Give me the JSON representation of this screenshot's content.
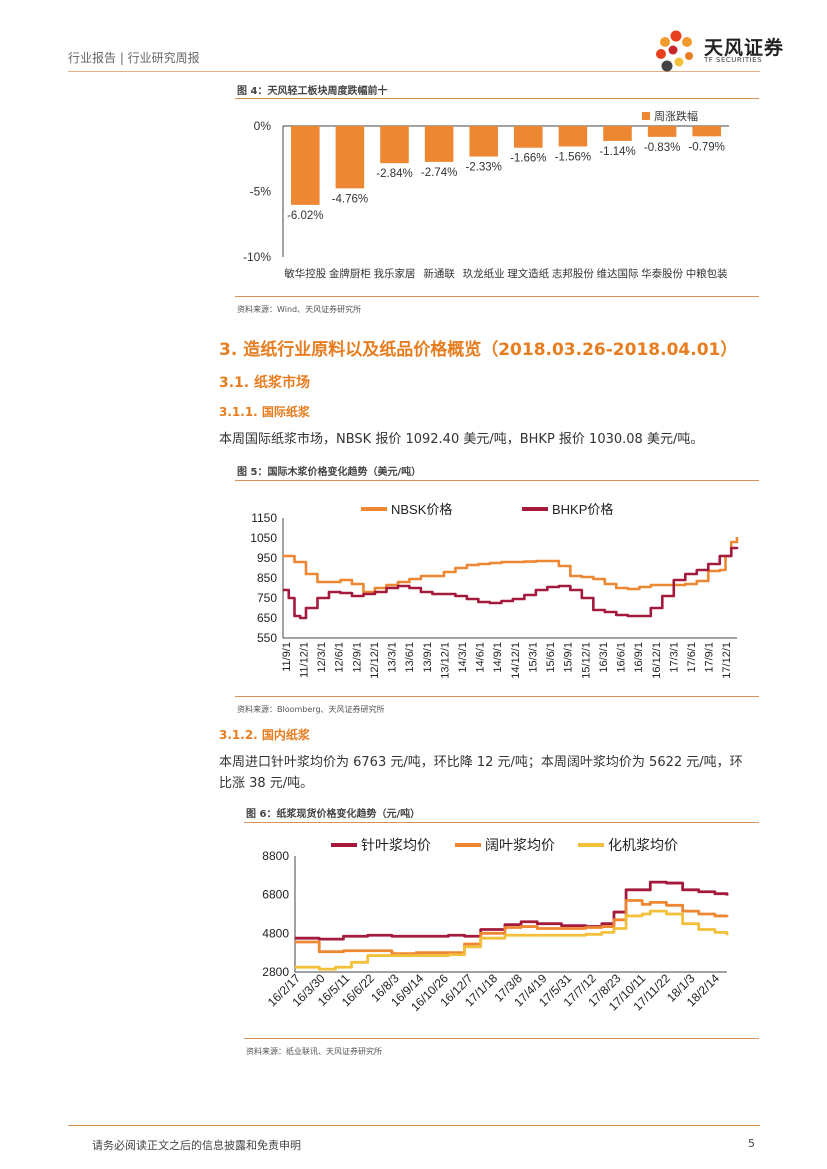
{
  "header": {
    "breadcrumb": "行业报告 | 行业研究周报",
    "logo_name": "天风证券",
    "logo_sub": "TF SECURITIES"
  },
  "colors": {
    "accent": "#e87d20",
    "bar": "#ee8732",
    "nbsk": "#ee8732",
    "bhkp": "#a31a3c",
    "yellow": "#f2c03a"
  },
  "fig4": {
    "title": "图 4：天风轻工板块周度跌幅前十",
    "source": "资料来源：Wind、天风证券研究所",
    "chart_data": {
      "type": "bar",
      "categories": [
        "敏华控股",
        "金牌厨柜",
        "我乐家居",
        "新通联",
        "玖龙纸业",
        "理文造纸",
        "志邦股份",
        "维达国际",
        "华泰股份",
        "中粮包装"
      ],
      "series": [
        {
          "name": "周涨跌幅",
          "values": [
            -6.02,
            -4.76,
            -2.84,
            -2.74,
            -2.33,
            -1.66,
            -1.56,
            -1.14,
            -0.83,
            -0.79
          ]
        }
      ],
      "value_labels": [
        "-6.02%",
        "-4.76%",
        "-2.84%",
        "-2.74%",
        "-2.33%",
        "-1.66%",
        "-1.56%",
        "-1.14%",
        "-0.83%",
        "-0.79%"
      ],
      "ylim": [
        -10,
        0
      ],
      "yticks": [
        0,
        -5,
        -10
      ],
      "ytick_labels": [
        "0%",
        "-5%",
        "-10%"
      ],
      "legend": "top-right"
    }
  },
  "section3": {
    "title": "3. 造纸行业原料以及纸品价格概览（2018.03.26-2018.04.01）",
    "s31": "3.1. 纸浆市场",
    "s311": "3.1.1. 国际纸浆",
    "p1": "本周国际纸浆市场，NBSK 报价 1092.40 美元/吨，BHKP 报价 1030.08 美元/吨。",
    "s312": "3.1.2. 国内纸浆",
    "p2a": "本周进口针叶浆均价为 6763 元/吨，环比降 12 元/吨；本周阔叶浆均价为 5622 元/吨，环",
    "p2b": "比涨 38 元/吨。"
  },
  "fig5": {
    "title": "图 5：国际木浆价格变化趋势（美元/吨）",
    "source": "资料来源：Bloomberg、天风证券研究所",
    "chart_data": {
      "type": "line",
      "ylim": [
        550,
        1150
      ],
      "yticks": [
        550,
        650,
        750,
        850,
        950,
        1050,
        1150
      ],
      "x_labels": [
        "11/9/1",
        "11/12/1",
        "12/3/1",
        "12/6/1",
        "12/9/1",
        "12/12/1",
        "13/3/1",
        "13/6/1",
        "13/9/1",
        "13/12/1",
        "14/3/1",
        "14/6/1",
        "14/9/1",
        "14/12/1",
        "15/3/1",
        "15/6/1",
        "15/9/1",
        "15/12/1",
        "16/3/1",
        "16/6/1",
        "16/9/1",
        "16/12/1",
        "17/3/1",
        "17/6/1",
        "17/9/1",
        "17/12/1"
      ],
      "x_range": [
        0,
        79
      ],
      "series": [
        {
          "name": "NBSK价格",
          "points": [
            [
              0,
              960
            ],
            [
              2,
              930
            ],
            [
              4,
              870
            ],
            [
              6,
              830
            ],
            [
              8,
              830
            ],
            [
              10,
              840
            ],
            [
              12,
              820
            ],
            [
              14,
              780
            ],
            [
              16,
              800
            ],
            [
              18,
              815
            ],
            [
              20,
              830
            ],
            [
              22,
              845
            ],
            [
              24,
              860
            ],
            [
              26,
              860
            ],
            [
              28,
              880
            ],
            [
              30,
              900
            ],
            [
              32,
              915
            ],
            [
              34,
              920
            ],
            [
              36,
              925
            ],
            [
              38,
              930
            ],
            [
              40,
              930
            ],
            [
              42,
              932
            ],
            [
              44,
              935
            ],
            [
              46,
              935
            ],
            [
              48,
              910
            ],
            [
              50,
              860
            ],
            [
              52,
              855
            ],
            [
              54,
              845
            ],
            [
              56,
              820
            ],
            [
              58,
              800
            ],
            [
              60,
              795
            ],
            [
              62,
              805
            ],
            [
              64,
              815
            ],
            [
              66,
              815
            ],
            [
              68,
              815
            ],
            [
              70,
              820
            ],
            [
              72,
              835
            ],
            [
              74,
              885
            ],
            [
              76,
              890
            ],
            [
              77,
              960
            ],
            [
              78,
              1030
            ],
            [
              79,
              1055
            ]
          ]
        },
        {
          "name": "BHKP价格",
          "points": [
            [
              0,
              790
            ],
            [
              1,
              750
            ],
            [
              2,
              660
            ],
            [
              3,
              650
            ],
            [
              4,
              700
            ],
            [
              6,
              750
            ],
            [
              8,
              780
            ],
            [
              10,
              775
            ],
            [
              12,
              760
            ],
            [
              14,
              770
            ],
            [
              16,
              780
            ],
            [
              18,
              800
            ],
            [
              20,
              810
            ],
            [
              22,
              800
            ],
            [
              24,
              780
            ],
            [
              26,
              770
            ],
            [
              28,
              770
            ],
            [
              30,
              760
            ],
            [
              32,
              745
            ],
            [
              34,
              730
            ],
            [
              36,
              725
            ],
            [
              38,
              735
            ],
            [
              40,
              745
            ],
            [
              42,
              765
            ],
            [
              44,
              790
            ],
            [
              46,
              805
            ],
            [
              48,
              810
            ],
            [
              50,
              790
            ],
            [
              52,
              750
            ],
            [
              54,
              690
            ],
            [
              56,
              680
            ],
            [
              58,
              665
            ],
            [
              60,
              660
            ],
            [
              62,
              660
            ],
            [
              64,
              700
            ],
            [
              66,
              760
            ],
            [
              68,
              840
            ],
            [
              70,
              870
            ],
            [
              72,
              890
            ],
            [
              74,
              920
            ],
            [
              76,
              960
            ],
            [
              78,
              1000
            ],
            [
              79,
              1005
            ]
          ]
        }
      ],
      "legend": "top"
    }
  },
  "fig6": {
    "title": "图 6：纸浆现货价格变化趋势（元/吨）",
    "source": "资料来源：纸业联讯、天风证券研究所",
    "chart_data": {
      "type": "line",
      "ylim": [
        2800,
        8800
      ],
      "yticks": [
        2800,
        4800,
        6800,
        8800
      ],
      "x_labels": [
        "16/2/17",
        "16/3/30",
        "16/5/11",
        "16/6/22",
        "16/8/3",
        "16/9/14",
        "16/10/26",
        "16/12/7",
        "17/1/18",
        "17/3/8",
        "17/4/19",
        "17/5/31",
        "17/7/12",
        "17/8/23",
        "17/10/11",
        "17/11/22",
        "18/1/3",
        "18/2/14"
      ],
      "x_range": [
        0,
        107
      ],
      "series": [
        {
          "name": "针叶浆均价",
          "points": [
            [
              0,
              4550
            ],
            [
              6,
              4500
            ],
            [
              12,
              4650
            ],
            [
              18,
              4700
            ],
            [
              24,
              4650
            ],
            [
              30,
              4650
            ],
            [
              38,
              4700
            ],
            [
              42,
              4650
            ],
            [
              46,
              5000
            ],
            [
              52,
              5250
            ],
            [
              56,
              5400
            ],
            [
              60,
              5300
            ],
            [
              66,
              5200
            ],
            [
              72,
              5150
            ],
            [
              76,
              5300
            ],
            [
              79,
              5900
            ],
            [
              82,
              7050
            ],
            [
              86,
              7050
            ],
            [
              88,
              7450
            ],
            [
              92,
              7400
            ],
            [
              96,
              7050
            ],
            [
              100,
              6950
            ],
            [
              104,
              6850
            ],
            [
              107,
              6750
            ]
          ]
        },
        {
          "name": "阔叶浆均价",
          "points": [
            [
              0,
              4350
            ],
            [
              6,
              3850
            ],
            [
              12,
              3900
            ],
            [
              18,
              3900
            ],
            [
              24,
              3750
            ],
            [
              30,
              3800
            ],
            [
              38,
              3800
            ],
            [
              42,
              4250
            ],
            [
              46,
              4800
            ],
            [
              52,
              5100
            ],
            [
              56,
              5150
            ],
            [
              60,
              5050
            ],
            [
              66,
              5050
            ],
            [
              72,
              5100
            ],
            [
              76,
              5150
            ],
            [
              79,
              5500
            ],
            [
              82,
              6500
            ],
            [
              86,
              6300
            ],
            [
              88,
              6400
            ],
            [
              92,
              6250
            ],
            [
              96,
              5950
            ],
            [
              100,
              5800
            ],
            [
              104,
              5700
            ],
            [
              107,
              5750
            ]
          ]
        },
        {
          "name": "化机浆均价",
          "points": [
            [
              0,
              3050
            ],
            [
              6,
              2950
            ],
            [
              10,
              3050
            ],
            [
              14,
              3300
            ],
            [
              18,
              3650
            ],
            [
              24,
              3650
            ],
            [
              30,
              3650
            ],
            [
              38,
              3700
            ],
            [
              42,
              4100
            ],
            [
              46,
              4550
            ],
            [
              52,
              4700
            ],
            [
              56,
              4700
            ],
            [
              60,
              4700
            ],
            [
              66,
              4700
            ],
            [
              72,
              4750
            ],
            [
              76,
              4850
            ],
            [
              79,
              5050
            ],
            [
              82,
              5700
            ],
            [
              86,
              5800
            ],
            [
              88,
              5950
            ],
            [
              92,
              5800
            ],
            [
              96,
              5300
            ],
            [
              100,
              5000
            ],
            [
              104,
              4850
            ],
            [
              107,
              4700
            ]
          ]
        }
      ],
      "legend": "top"
    }
  },
  "footer": {
    "disclaimer": "请务必阅读正文之后的信息披露和免责申明",
    "page": "5"
  }
}
